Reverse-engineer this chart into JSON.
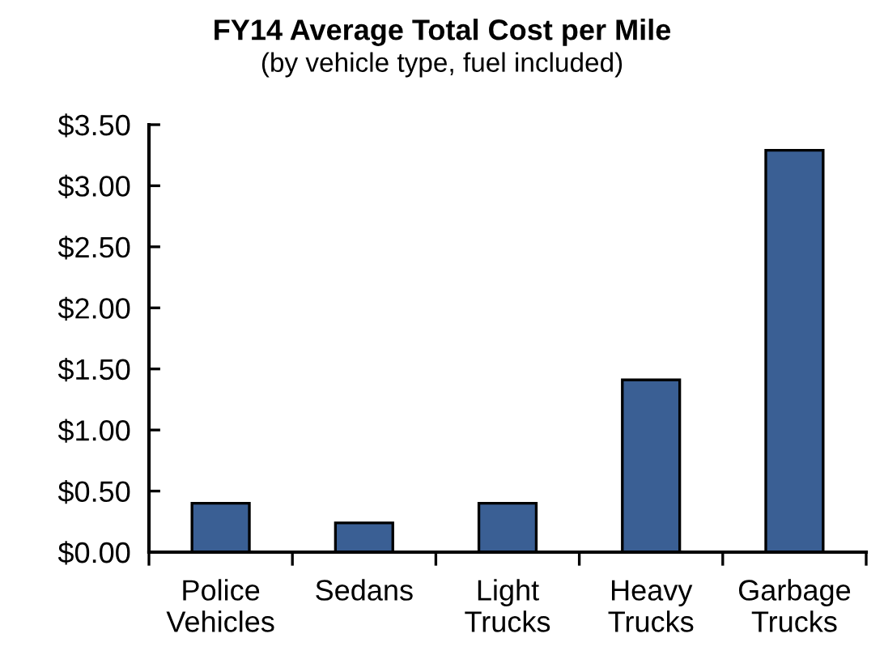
{
  "chart_data": {
    "type": "bar",
    "title": "FY14 Average Total Cost per Mile",
    "subtitle": "(by vehicle type, fuel included)",
    "categories": [
      "Police\nVehicles",
      "Sedans",
      "Light\nTrucks",
      "Heavy\nTrucks",
      "Garbage\nTrucks"
    ],
    "values": [
      0.4,
      0.24,
      0.4,
      1.41,
      3.29
    ],
    "color": "#3a5f94",
    "ylim": [
      0,
      3.5
    ],
    "yticks": [
      {
        "value": 0,
        "label": "$0.00"
      },
      {
        "value": 0.5,
        "label": "$0.50"
      },
      {
        "value": 1,
        "label": "$1.00"
      },
      {
        "value": 1.5,
        "label": "$1.50"
      },
      {
        "value": 2,
        "label": "$2.00"
      },
      {
        "value": 2.5,
        "label": "$2.50"
      },
      {
        "value": 3,
        "label": "$3.00"
      },
      {
        "value": 3.5,
        "label": "$3.50"
      }
    ],
    "grid": false,
    "legend": false
  }
}
